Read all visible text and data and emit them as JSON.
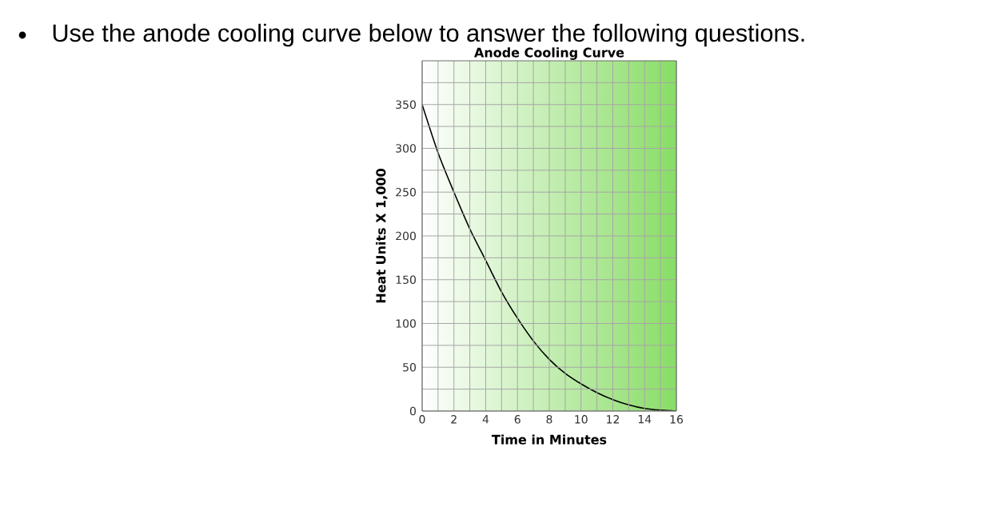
{
  "chart_data": {
    "type": "line",
    "title": "Anode Cooling Curve",
    "xlabel": "Time in Minutes",
    "ylabel": "Heat Units X 1,000",
    "annotations": [
      "Use the anode cooling curve below to answer the following questions."
    ],
    "x": [
      0,
      1,
      2,
      3,
      4,
      5,
      6,
      7,
      8,
      9,
      10,
      11,
      12,
      13,
      14,
      15,
      16
    ],
    "series": [
      {
        "color": "#000000",
        "values": [
          350,
          295,
          250,
          208,
          172,
          136,
          106,
          80,
          59,
          43,
          31,
          21,
          13,
          7,
          3,
          1,
          0
        ]
      }
    ],
    "xlim": [
      0,
      16
    ],
    "xticks": [
      0,
      {
        "value": 1,
        "label": null
      },
      2,
      {
        "value": 3,
        "label": null
      },
      4,
      {
        "value": 5,
        "label": null
      },
      6,
      {
        "value": 7,
        "label": null
      },
      8,
      {
        "value": 9,
        "label": null
      },
      10,
      {
        "value": 11,
        "label": null
      },
      12,
      {
        "value": 13,
        "label": null
      },
      14,
      {
        "value": 15,
        "label": null
      },
      16
    ],
    "ylim": [
      0,
      400
    ],
    "yticks": [
      0,
      {
        "value": 25,
        "label": null
      },
      50,
      {
        "value": 75,
        "label": null
      },
      100,
      {
        "value": 125,
        "label": null
      },
      150,
      {
        "value": 175,
        "label": null
      },
      200,
      {
        "value": 225,
        "label": null
      },
      250,
      {
        "value": 275,
        "label": null
      },
      300,
      {
        "value": 325,
        "label": null
      },
      350,
      {
        "value": 375,
        "label": null
      }
    ],
    "grid": true,
    "marker": "none",
    "line_style": "solid"
  }
}
